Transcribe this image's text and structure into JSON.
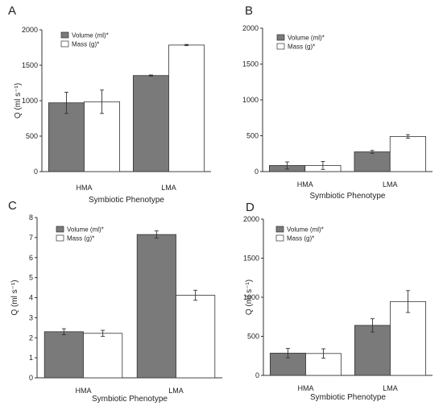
{
  "colors": {
    "volume": "#7a7a7a",
    "mass": "#ffffff",
    "edge": "#333333",
    "axis": "#333333"
  },
  "chart_data": [
    {
      "panel": "A",
      "type": "bar",
      "categories": [
        "HMA",
        "LMA"
      ],
      "xlabel": "Symbiotic Phenotype",
      "ylabel": "Q (ml s⁻¹)",
      "ylim": [
        0,
        2000
      ],
      "yticks": [
        0,
        500,
        1000,
        1500,
        2000
      ],
      "legend": "top-left",
      "series": [
        {
          "name": "Volume (ml)*",
          "values": [
            970,
            1355
          ],
          "errors": [
            150,
            8
          ]
        },
        {
          "name": "Mass (g)*",
          "values": [
            985,
            1785
          ],
          "errors": [
            165,
            8
          ]
        }
      ]
    },
    {
      "panel": "B",
      "type": "bar",
      "categories": [
        "HMA",
        "LMA"
      ],
      "xlabel": "Symbiotic Phenotype",
      "ylabel": "",
      "ylim": [
        0,
        2000
      ],
      "yticks": [
        0,
        500,
        1000,
        1500,
        2000
      ],
      "legend": "top-left",
      "series": [
        {
          "name": "Volume (ml)*",
          "values": [
            85,
            275
          ],
          "errors": [
            50,
            20
          ]
        },
        {
          "name": "Mass (g)*",
          "values": [
            85,
            490
          ],
          "errors": [
            55,
            25
          ]
        }
      ]
    },
    {
      "panel": "C",
      "type": "bar",
      "categories": [
        "HMA",
        "LMA"
      ],
      "xlabel": "Symbiotic Phenotype",
      "ylabel": "Q (ml s⁻¹)",
      "ylim": [
        0,
        8
      ],
      "yticks": [
        0,
        1,
        2,
        3,
        4,
        5,
        6,
        7,
        8
      ],
      "legend": "top-left",
      "series": [
        {
          "name": "Volume (ml)*",
          "values": [
            2.3,
            7.15
          ],
          "errors": [
            0.15,
            0.18
          ]
        },
        {
          "name": "Mass (g)*",
          "values": [
            2.22,
            4.12
          ],
          "errors": [
            0.15,
            0.25
          ]
        }
      ]
    },
    {
      "panel": "D",
      "type": "bar",
      "categories": [
        "HMA",
        "LMA"
      ],
      "xlabel": "Symbiotic Phenotype",
      "ylabel": "Q (ml s⁻¹)",
      "ylim": [
        0,
        2000
      ],
      "yticks": [
        0,
        500,
        1000,
        1500,
        2000
      ],
      "legend": "top-left",
      "series": [
        {
          "name": "Volume (ml)*",
          "values": [
            285,
            640
          ],
          "errors": [
            60,
            85
          ]
        },
        {
          "name": "Mass (g)*",
          "values": [
            280,
            945
          ],
          "errors": [
            60,
            140
          ]
        }
      ]
    }
  ]
}
